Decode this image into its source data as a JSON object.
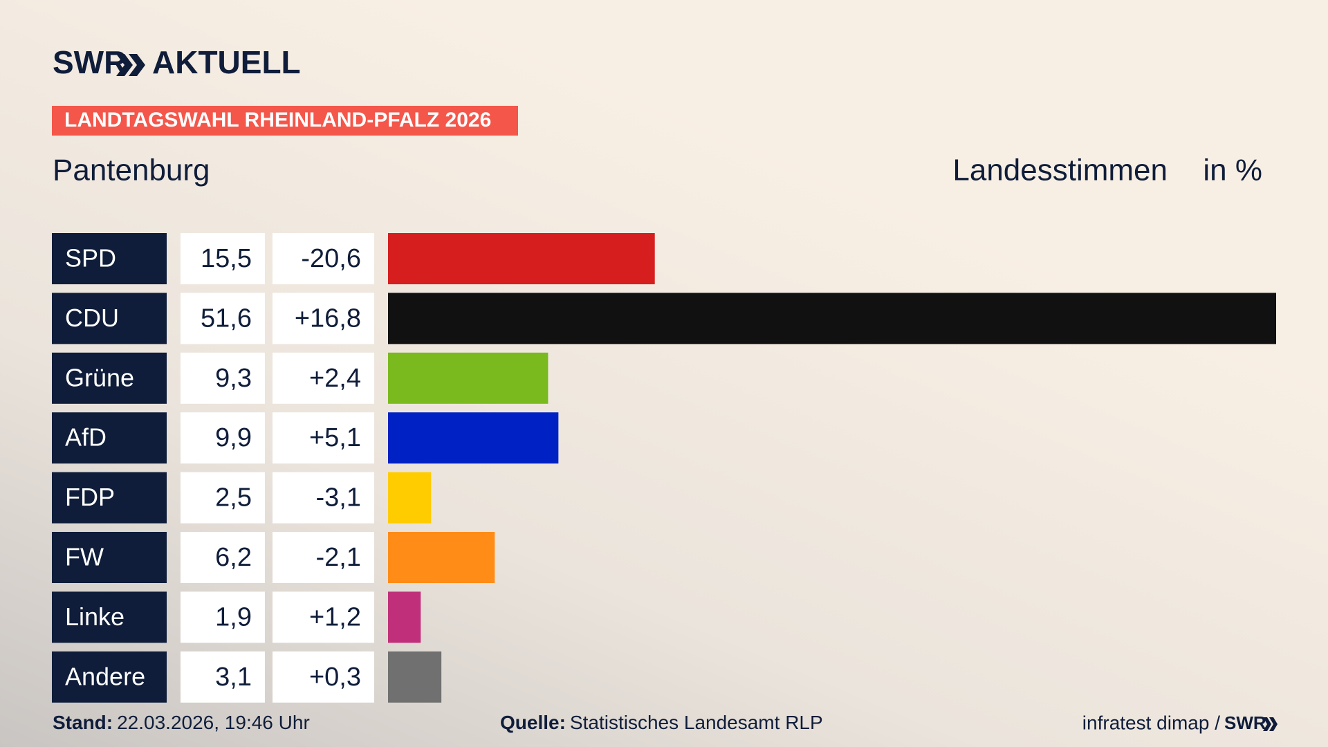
{
  "chart_data": {
    "type": "bar",
    "brand": "SWR",
    "section": "AKTUELL",
    "kicker": "LANDTAGSWAHL RHEINLAND-PFALZ 2026",
    "title": "Pantenburg",
    "measure": "Landesstimmen",
    "unit": "in %",
    "categories": [
      "SPD",
      "CDU",
      "Grüne",
      "AfD",
      "FDP",
      "FW",
      "Linke",
      "Andere"
    ],
    "values": [
      15.5,
      51.6,
      9.3,
      9.9,
      2.5,
      6.2,
      1.9,
      3.1
    ],
    "value_labels": [
      "15,5",
      "51,6",
      "9,3",
      "9,9",
      "2,5",
      "6,2",
      "1,9",
      "3,1"
    ],
    "changes": [
      -20.6,
      16.8,
      2.4,
      5.1,
      -3.1,
      -2.1,
      1.2,
      0.3
    ],
    "change_labels": [
      "-20,6",
      "+16,8",
      "+2,4",
      "+5,1",
      "-3,1",
      "-2,1",
      "+1,2",
      "+0,3"
    ],
    "colors": [
      "#d61e1e",
      "#111111",
      "#7aba1e",
      "#0022c4",
      "#ffcc00",
      "#ff8c17",
      "#c0307a",
      "#707070"
    ],
    "date_label": "Stand:",
    "date": "22.03.2026, 19:46 Uhr",
    "source_label": "Quelle:",
    "source": "Statistisches Landesamt RLP",
    "credit": "infratest dimap /"
  }
}
